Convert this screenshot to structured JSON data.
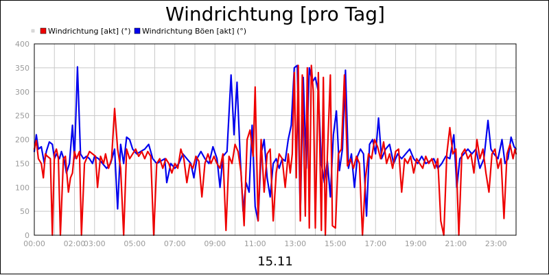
{
  "chart_data": {
    "type": "line",
    "title": "Windrichtung [pro Tag]",
    "xlabel": "15.11",
    "ylabel": "",
    "ylim": [
      0,
      400
    ],
    "xlim": [
      "00:00",
      "24:00"
    ],
    "grid": true,
    "legend_position": "top-left",
    "y_ticks": [
      "0",
      "50",
      "100",
      "150",
      "200",
      "250",
      "300",
      "350",
      "400"
    ],
    "x_ticks": [
      "00:00",
      "02:00",
      "03:00",
      "05:00",
      "07:00",
      "09:00",
      "11:00",
      "13:00",
      "15:00",
      "17:00",
      "19:00",
      "21:00",
      "23:00"
    ],
    "x_tick_hours": [
      0,
      2,
      3,
      5,
      7,
      9,
      11,
      13,
      15,
      17,
      19,
      21,
      23
    ],
    "series": [
      {
        "name": "Windrichtung Böen [akt] (°)",
        "color": "#0000ee",
        "points": [
          [
            0.0,
            175
          ],
          [
            0.1,
            210
          ],
          [
            0.2,
            180
          ],
          [
            0.35,
            185
          ],
          [
            0.5,
            150
          ],
          [
            0.6,
            175
          ],
          [
            0.75,
            195
          ],
          [
            0.9,
            190
          ],
          [
            1.0,
            160
          ],
          [
            1.1,
            170
          ],
          [
            1.25,
            160
          ],
          [
            1.35,
            175
          ],
          [
            1.5,
            155
          ],
          [
            1.6,
            130
          ],
          [
            1.75,
            150
          ],
          [
            1.9,
            230
          ],
          [
            2.0,
            160
          ],
          [
            2.15,
            352
          ],
          [
            2.3,
            170
          ],
          [
            2.45,
            160
          ],
          [
            2.6,
            165
          ],
          [
            2.75,
            160
          ],
          [
            2.9,
            150
          ],
          [
            3.0,
            165
          ],
          [
            3.2,
            160
          ],
          [
            3.4,
            150
          ],
          [
            3.6,
            140
          ],
          [
            3.8,
            150
          ],
          [
            4.0,
            180
          ],
          [
            4.15,
            55
          ],
          [
            4.3,
            190
          ],
          [
            4.45,
            150
          ],
          [
            4.6,
            205
          ],
          [
            4.75,
            200
          ],
          [
            4.9,
            180
          ],
          [
            5.1,
            170
          ],
          [
            5.3,
            175
          ],
          [
            5.5,
            180
          ],
          [
            5.7,
            190
          ],
          [
            5.9,
            160
          ],
          [
            6.1,
            150
          ],
          [
            6.3,
            155
          ],
          [
            6.5,
            160
          ],
          [
            6.6,
            110
          ],
          [
            6.8,
            150
          ],
          [
            7.0,
            140
          ],
          [
            7.2,
            150
          ],
          [
            7.4,
            170
          ],
          [
            7.6,
            160
          ],
          [
            7.8,
            150
          ],
          [
            7.95,
            120
          ],
          [
            8.1,
            160
          ],
          [
            8.3,
            175
          ],
          [
            8.5,
            160
          ],
          [
            8.7,
            150
          ],
          [
            8.9,
            185
          ],
          [
            9.1,
            160
          ],
          [
            9.25,
            100
          ],
          [
            9.4,
            165
          ],
          [
            9.6,
            175
          ],
          [
            9.8,
            335
          ],
          [
            9.95,
            210
          ],
          [
            10.1,
            320
          ],
          [
            10.25,
            170
          ],
          [
            10.4,
            50
          ],
          [
            10.55,
            110
          ],
          [
            10.7,
            90
          ],
          [
            10.85,
            230
          ],
          [
            11.0,
            60
          ],
          [
            11.15,
            30
          ],
          [
            11.3,
            170
          ],
          [
            11.45,
            200
          ],
          [
            11.6,
            120
          ],
          [
            11.75,
            80
          ],
          [
            11.9,
            150
          ],
          [
            12.05,
            160
          ],
          [
            12.2,
            140
          ],
          [
            12.35,
            160
          ],
          [
            12.5,
            155
          ],
          [
            12.65,
            200
          ],
          [
            12.8,
            230
          ],
          [
            12.95,
            350
          ],
          [
            13.1,
            355
          ],
          [
            13.25,
            40
          ],
          [
            13.4,
            330
          ],
          [
            13.55,
            140
          ],
          [
            13.7,
            350
          ],
          [
            13.85,
            320
          ],
          [
            14.0,
            330
          ],
          [
            14.15,
            300
          ],
          [
            14.3,
            150
          ],
          [
            14.45,
            110
          ],
          [
            14.6,
            155
          ],
          [
            14.75,
            80
          ],
          [
            14.9,
            210
          ],
          [
            15.05,
            260
          ],
          [
            15.2,
            135
          ],
          [
            15.35,
            180
          ],
          [
            15.5,
            345
          ],
          [
            15.65,
            140
          ],
          [
            15.8,
            170
          ],
          [
            15.95,
            100
          ],
          [
            16.1,
            165
          ],
          [
            16.25,
            180
          ],
          [
            16.4,
            170
          ],
          [
            16.55,
            40
          ],
          [
            16.7,
            190
          ],
          [
            16.85,
            200
          ],
          [
            17.0,
            170
          ],
          [
            17.15,
            245
          ],
          [
            17.3,
            160
          ],
          [
            17.5,
            180
          ],
          [
            17.7,
            190
          ],
          [
            17.9,
            150
          ],
          [
            18.1,
            170
          ],
          [
            18.3,
            160
          ],
          [
            18.5,
            170
          ],
          [
            18.7,
            180
          ],
          [
            18.9,
            160
          ],
          [
            19.1,
            150
          ],
          [
            19.3,
            165
          ],
          [
            19.5,
            150
          ],
          [
            19.7,
            155
          ],
          [
            19.9,
            160
          ],
          [
            20.1,
            140
          ],
          [
            20.3,
            150
          ],
          [
            20.5,
            165
          ],
          [
            20.7,
            160
          ],
          [
            20.9,
            210
          ],
          [
            21.05,
            100
          ],
          [
            21.2,
            160
          ],
          [
            21.4,
            170
          ],
          [
            21.6,
            180
          ],
          [
            21.8,
            170
          ],
          [
            22.0,
            180
          ],
          [
            22.2,
            140
          ],
          [
            22.4,
            160
          ],
          [
            22.6,
            240
          ],
          [
            22.75,
            180
          ],
          [
            22.9,
            170
          ],
          [
            23.1,
            160
          ],
          [
            23.3,
            200
          ],
          [
            23.45,
            150
          ],
          [
            23.6,
            160
          ],
          [
            23.75,
            205
          ],
          [
            23.9,
            185
          ],
          [
            24.0,
            180
          ]
        ]
      },
      {
        "name": "Windrichtung [akt] (°)",
        "color": "#ee0000",
        "points": [
          [
            0.0,
            180
          ],
          [
            0.1,
            198
          ],
          [
            0.2,
            160
          ],
          [
            0.35,
            150
          ],
          [
            0.45,
            120
          ],
          [
            0.55,
            170
          ],
          [
            0.65,
            165
          ],
          [
            0.8,
            160
          ],
          [
            0.9,
            0
          ],
          [
            1.0,
            170
          ],
          [
            1.1,
            180
          ],
          [
            1.2,
            160
          ],
          [
            1.3,
            0
          ],
          [
            1.45,
            160
          ],
          [
            1.55,
            165
          ],
          [
            1.7,
            90
          ],
          [
            1.8,
            120
          ],
          [
            1.9,
            130
          ],
          [
            2.0,
            175
          ],
          [
            2.1,
            160
          ],
          [
            2.25,
            175
          ],
          [
            2.35,
            0
          ],
          [
            2.5,
            150
          ],
          [
            2.6,
            160
          ],
          [
            2.75,
            175
          ],
          [
            2.9,
            170
          ],
          [
            3.05,
            165
          ],
          [
            3.15,
            100
          ],
          [
            3.3,
            165
          ],
          [
            3.45,
            150
          ],
          [
            3.55,
            170
          ],
          [
            3.7,
            140
          ],
          [
            3.85,
            160
          ],
          [
            4.0,
            265
          ],
          [
            4.15,
            180
          ],
          [
            4.3,
            140
          ],
          [
            4.45,
            0
          ],
          [
            4.6,
            180
          ],
          [
            4.75,
            160
          ],
          [
            4.9,
            170
          ],
          [
            5.05,
            180
          ],
          [
            5.2,
            165
          ],
          [
            5.35,
            175
          ],
          [
            5.5,
            160
          ],
          [
            5.65,
            175
          ],
          [
            5.8,
            165
          ],
          [
            5.95,
            0
          ],
          [
            6.1,
            150
          ],
          [
            6.25,
            160
          ],
          [
            6.4,
            140
          ],
          [
            6.55,
            160
          ],
          [
            6.7,
            150
          ],
          [
            6.85,
            130
          ],
          [
            7.0,
            150
          ],
          [
            7.15,
            140
          ],
          [
            7.3,
            180
          ],
          [
            7.45,
            160
          ],
          [
            7.6,
            110
          ],
          [
            7.75,
            150
          ],
          [
            7.9,
            140
          ],
          [
            8.05,
            165
          ],
          [
            8.2,
            155
          ],
          [
            8.35,
            80
          ],
          [
            8.5,
            150
          ],
          [
            8.65,
            170
          ],
          [
            8.8,
            150
          ],
          [
            8.95,
            165
          ],
          [
            9.1,
            150
          ],
          [
            9.25,
            140
          ],
          [
            9.4,
            170
          ],
          [
            9.55,
            10
          ],
          [
            9.7,
            165
          ],
          [
            9.85,
            150
          ],
          [
            10.0,
            190
          ],
          [
            10.15,
            175
          ],
          [
            10.3,
            130
          ],
          [
            10.45,
            20
          ],
          [
            10.6,
            200
          ],
          [
            10.75,
            220
          ],
          [
            10.9,
            165
          ],
          [
            11.0,
            310
          ],
          [
            11.15,
            30
          ],
          [
            11.3,
            200
          ],
          [
            11.45,
            90
          ],
          [
            11.6,
            170
          ],
          [
            11.75,
            180
          ],
          [
            11.9,
            30
          ],
          [
            12.05,
            130
          ],
          [
            12.2,
            170
          ],
          [
            12.35,
            160
          ],
          [
            12.5,
            100
          ],
          [
            12.65,
            170
          ],
          [
            12.75,
            130
          ],
          [
            12.85,
            170
          ],
          [
            12.95,
            340
          ],
          [
            13.05,
            120
          ],
          [
            13.15,
            355
          ],
          [
            13.25,
            30
          ],
          [
            13.35,
            335
          ],
          [
            13.5,
            40
          ],
          [
            13.6,
            350
          ],
          [
            13.7,
            15
          ],
          [
            13.8,
            355
          ],
          [
            13.9,
            300
          ],
          [
            14.0,
            15
          ],
          [
            14.15,
            340
          ],
          [
            14.3,
            10
          ],
          [
            14.4,
            330
          ],
          [
            14.5,
            0
          ],
          [
            14.6,
            165
          ],
          [
            14.75,
            335
          ],
          [
            14.85,
            20
          ],
          [
            15.0,
            15
          ],
          [
            15.15,
            170
          ],
          [
            15.3,
            180
          ],
          [
            15.45,
            335
          ],
          [
            15.6,
            145
          ],
          [
            15.75,
            160
          ],
          [
            15.9,
            140
          ],
          [
            16.05,
            165
          ],
          [
            16.2,
            150
          ],
          [
            16.35,
            0
          ],
          [
            16.5,
            120
          ],
          [
            16.65,
            170
          ],
          [
            16.8,
            160
          ],
          [
            16.95,
            200
          ],
          [
            17.1,
            185
          ],
          [
            17.25,
            160
          ],
          [
            17.4,
            195
          ],
          [
            17.55,
            150
          ],
          [
            17.7,
            170
          ],
          [
            17.85,
            140
          ],
          [
            18.0,
            175
          ],
          [
            18.15,
            180
          ],
          [
            18.3,
            90
          ],
          [
            18.45,
            160
          ],
          [
            18.6,
            150
          ],
          [
            18.75,
            165
          ],
          [
            18.9,
            130
          ],
          [
            19.05,
            160
          ],
          [
            19.2,
            150
          ],
          [
            19.35,
            140
          ],
          [
            19.5,
            165
          ],
          [
            19.65,
            150
          ],
          [
            19.8,
            160
          ],
          [
            19.95,
            140
          ],
          [
            20.1,
            160
          ],
          [
            20.25,
            30
          ],
          [
            20.4,
            0
          ],
          [
            20.55,
            170
          ],
          [
            20.7,
            225
          ],
          [
            20.85,
            170
          ],
          [
            21.0,
            180
          ],
          [
            21.15,
            0
          ],
          [
            21.3,
            170
          ],
          [
            21.45,
            180
          ],
          [
            21.6,
            160
          ],
          [
            21.75,
            170
          ],
          [
            21.9,
            130
          ],
          [
            22.05,
            200
          ],
          [
            22.2,
            160
          ],
          [
            22.35,
            180
          ],
          [
            22.5,
            130
          ],
          [
            22.65,
            90
          ],
          [
            22.8,
            170
          ],
          [
            22.95,
            180
          ],
          [
            23.1,
            140
          ],
          [
            23.25,
            160
          ],
          [
            23.4,
            35
          ],
          [
            23.55,
            170
          ],
          [
            23.7,
            190
          ],
          [
            23.85,
            160
          ],
          [
            23.95,
            180
          ],
          [
            24.0,
            170
          ]
        ]
      }
    ]
  }
}
